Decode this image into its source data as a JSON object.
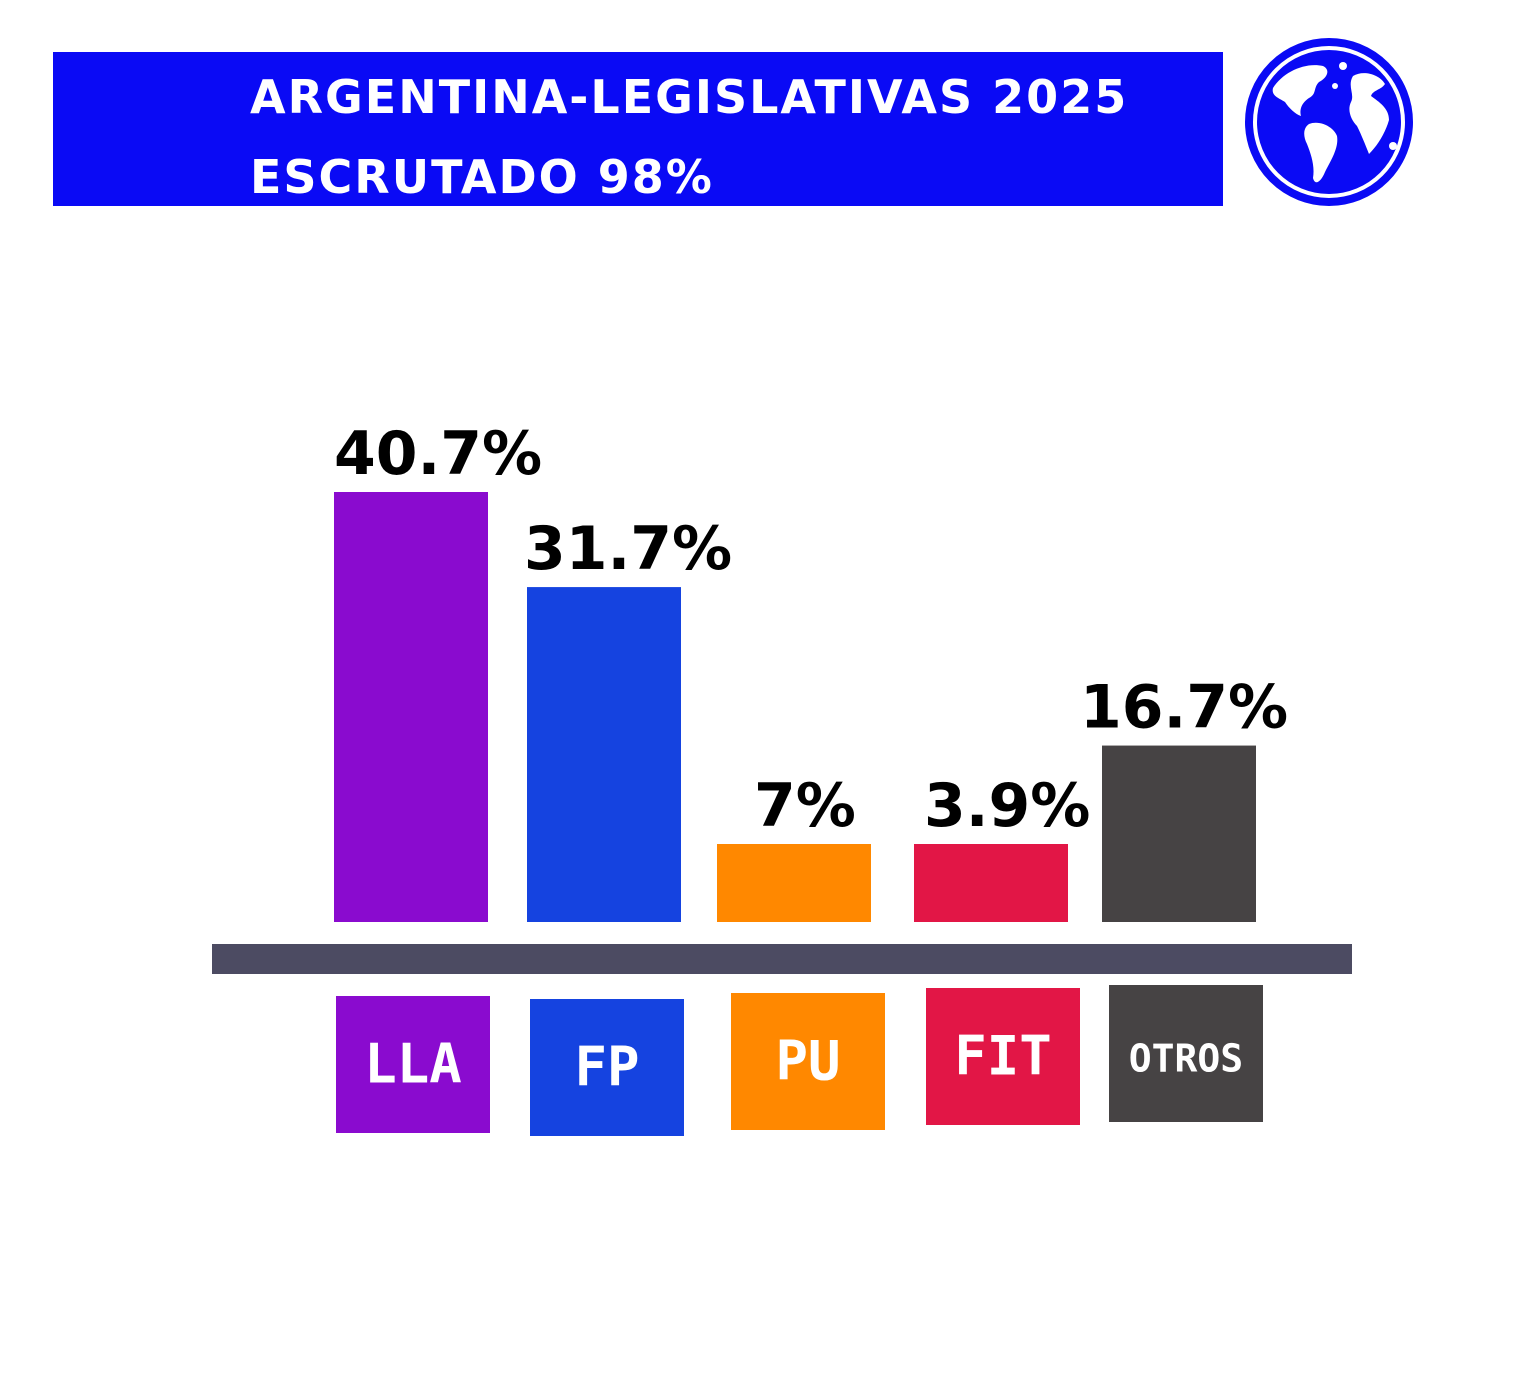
{
  "header": {
    "title": "ARGENTINA-LEGISLATIVAS 2025",
    "subtitle": "ESCRUTADO 98%",
    "banner_color": "#0a0af5",
    "icon": "globe-icon"
  },
  "chart_data": {
    "type": "bar",
    "categories": [
      "LLA",
      "FP",
      "PU",
      "FIT",
      "OTROS"
    ],
    "values": [
      40.7,
      31.7,
      7,
      3.9,
      16.7
    ],
    "value_labels": [
      "40.7%",
      "31.7%",
      "7%",
      "3.9%",
      "16.7%"
    ],
    "colors": [
      "#8a0bcf",
      "#1543e0",
      "#ff8800",
      "#e21646",
      "#464344"
    ],
    "axis_color": "#4c4b62",
    "grid": false,
    "legend": "none"
  }
}
